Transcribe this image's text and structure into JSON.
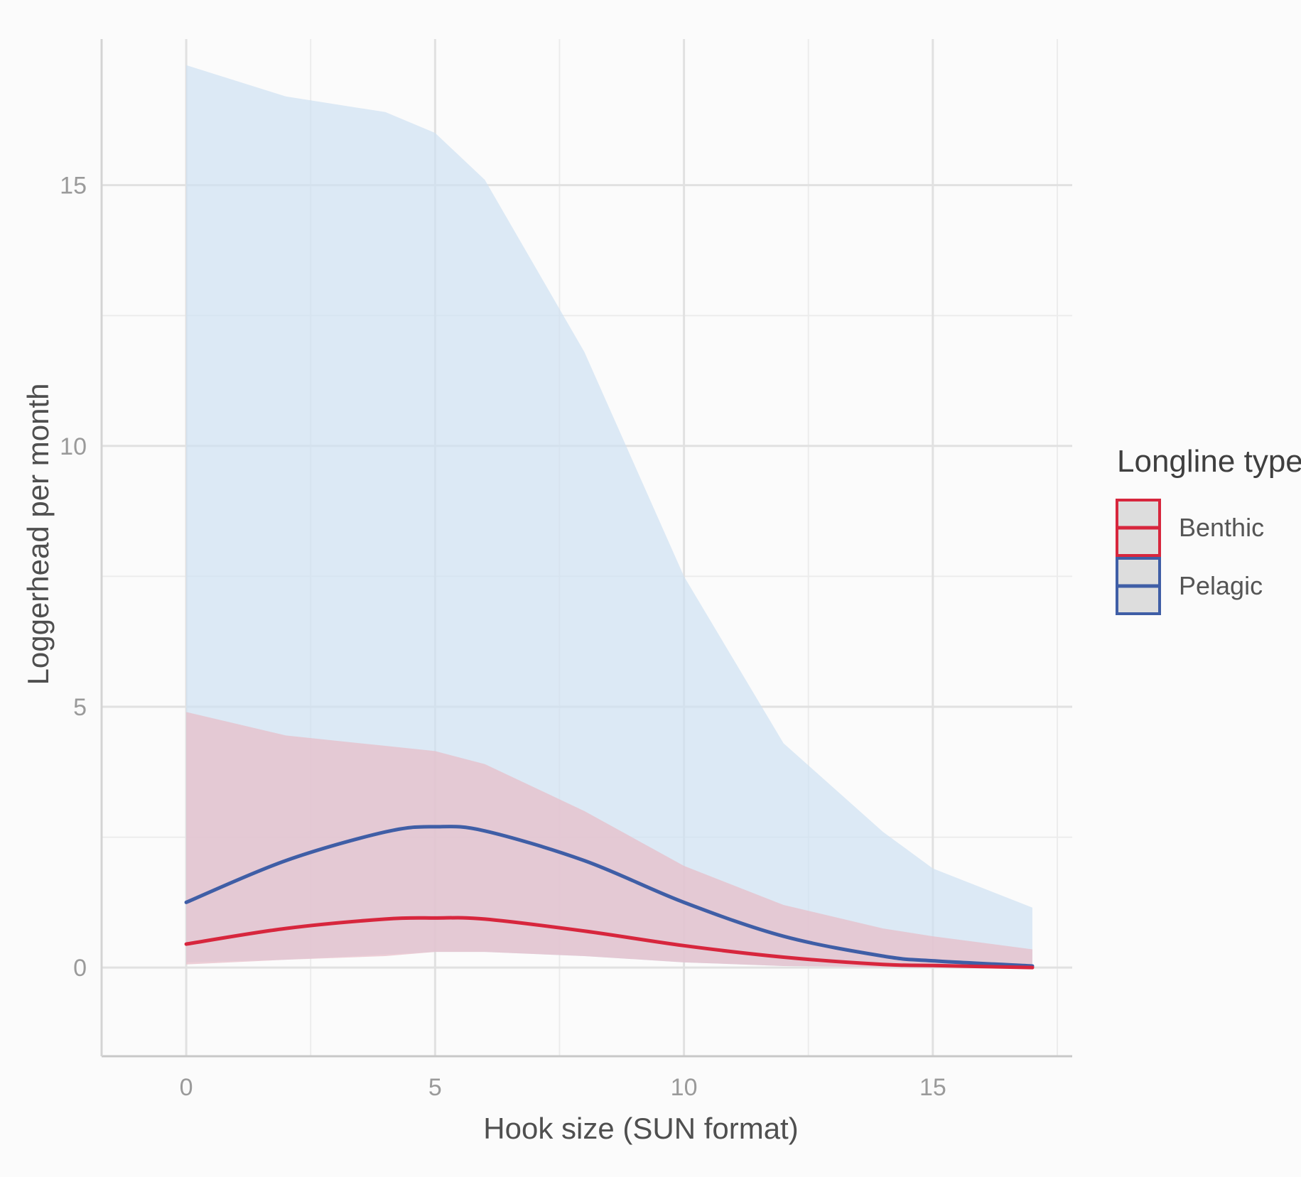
{
  "chart_data": {
    "type": "line",
    "xlabel": "Hook size (SUN format)",
    "ylabel": "Loggerhead per month",
    "xlim": [
      -1.7,
      17.8
    ],
    "ylim": [
      -1.7,
      17.8
    ],
    "x_ticks": [
      0,
      5,
      10,
      15
    ],
    "x_tick_labels": [
      "0",
      "5",
      "10",
      "15"
    ],
    "x_minor_ticks": [
      2.5,
      7.5,
      12.5,
      17.5
    ],
    "y_ticks": [
      0,
      5,
      10,
      15
    ],
    "y_tick_labels": [
      "0",
      "5",
      "10",
      "15"
    ],
    "y_minor_ticks": [
      2.5,
      7.5,
      12.5
    ],
    "grid": true,
    "legend": {
      "title": "Longline type",
      "position": "right"
    },
    "x": [
      0,
      2,
      4,
      5,
      6,
      8,
      10,
      12,
      14,
      15,
      17
    ],
    "series": [
      {
        "name": "Benthic",
        "color": "#d7263d",
        "fill": "#e8bcc8",
        "values": [
          0.45,
          0.75,
          0.93,
          0.95,
          0.93,
          0.7,
          0.42,
          0.2,
          0.06,
          0.04,
          0.0
        ],
        "lower": [
          0.06,
          0.15,
          0.22,
          0.3,
          0.3,
          0.22,
          0.1,
          0.03,
          0.01,
          0.0,
          0.0
        ],
        "upper": [
          4.9,
          4.45,
          4.25,
          4.15,
          3.9,
          3.0,
          1.95,
          1.2,
          0.75,
          0.6,
          0.35
        ]
      },
      {
        "name": "Pelagic",
        "color": "#3f5ea6",
        "fill": "#cfe1f2",
        "values": [
          1.25,
          2.05,
          2.6,
          2.7,
          2.62,
          2.05,
          1.25,
          0.6,
          0.22,
          0.13,
          0.03
        ],
        "lower": [
          0.1,
          0.15,
          0.25,
          0.3,
          0.3,
          0.22,
          0.1,
          0.03,
          0.01,
          0.0,
          0.0
        ],
        "upper": [
          17.3,
          16.7,
          16.4,
          16.0,
          15.1,
          11.8,
          7.5,
          4.3,
          2.6,
          1.9,
          1.15
        ]
      }
    ]
  }
}
